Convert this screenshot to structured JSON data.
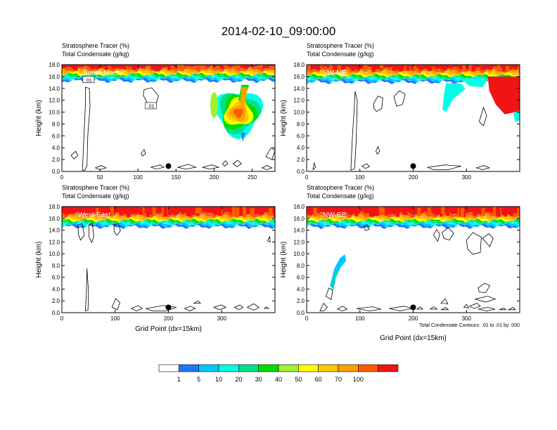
{
  "title": "2014-02-10_09:00:00",
  "colors": {
    "levels": [
      "#ffffff",
      "#1e78ff",
      "#00c8ff",
      "#00ffe6",
      "#00e18c",
      "#00dc00",
      "#a0f032",
      "#ffff00",
      "#ffc800",
      "#ffa000",
      "#ff5a00",
      "#f01414"
    ]
  },
  "chart_data": [
    {
      "type": "heatmap",
      "panel": "South-North",
      "label": "South-North",
      "header_line1": "Stratosphere Tracer   (%)",
      "header_line2": "Total Condensate   (g/kg)",
      "ylabel": "Height (km)",
      "xlabel": "",
      "xlim": [
        0,
        280
      ],
      "ylim": [
        0,
        18
      ],
      "xticks": [
        0,
        50,
        100,
        150,
        200,
        250
      ],
      "yticks": [
        0.0,
        2.0,
        4.0,
        6.0,
        8.0,
        10.0,
        12.0,
        14.0,
        16.0,
        18.0
      ],
      "location_marker_x": 140,
      "tracer_base_km": 16.2,
      "contour_labels": [
        ".01",
        ".01"
      ]
    },
    {
      "type": "heatmap",
      "panel": "SW-NE",
      "label": "SW-NE",
      "header_line1": "Stratosphere Tracer   (%)",
      "header_line2": "Total Condensate   (g/kg)",
      "ylabel": "Height (km)",
      "xlabel": "",
      "xlim": [
        0,
        400
      ],
      "ylim": [
        0,
        18
      ],
      "xticks": [
        0,
        100,
        200,
        300
      ],
      "yticks": [
        0.0,
        2.0,
        4.0,
        6.0,
        8.0,
        10.0,
        12.0,
        14.0,
        16.0,
        18.0
      ],
      "location_marker_x": 200,
      "tracer_base_km": 16.0,
      "contour_labels": []
    },
    {
      "type": "heatmap",
      "panel": "West-East",
      "label": "West-East",
      "header_line1": "Stratosphere Tracer   (%)",
      "header_line2": "Total Condensate   (g/kg)",
      "ylabel": "Height (km)",
      "xlabel": "Grid Point (dx=15km)",
      "xlim": [
        0,
        400
      ],
      "ylim": [
        0,
        18
      ],
      "xticks": [
        0,
        100,
        200,
        300
      ],
      "yticks": [
        0.0,
        2.0,
        4.0,
        6.0,
        8.0,
        10.0,
        12.0,
        14.0,
        16.0,
        18.0
      ],
      "location_marker_x": 200,
      "tracer_base_km": 15.5,
      "contour_labels": []
    },
    {
      "type": "heatmap",
      "panel": "NW-SE",
      "label": "NW-SE",
      "header_line1": "Stratosphere Tracer   (%)",
      "header_line2": "Total Condensate   (g/kg)",
      "ylabel": "Height (km)",
      "xlabel": "Grid Point (dx=15km)",
      "xlim": [
        0,
        400
      ],
      "ylim": [
        0,
        18
      ],
      "xticks": [
        0,
        100,
        200,
        300
      ],
      "yticks": [
        0.0,
        2.0,
        4.0,
        6.0,
        8.0,
        10.0,
        12.0,
        14.0,
        16.0,
        18.0
      ],
      "location_marker_x": 200,
      "tracer_base_km": 15.5,
      "contour_labels": [],
      "footnote": "Total Condensate Contours: .01 to .01 by .000"
    }
  ],
  "colorbar": {
    "labels": [
      "1",
      "5",
      "10",
      "20",
      "30",
      "40",
      "50",
      "60",
      "70",
      "100"
    ],
    "bins": 12
  }
}
